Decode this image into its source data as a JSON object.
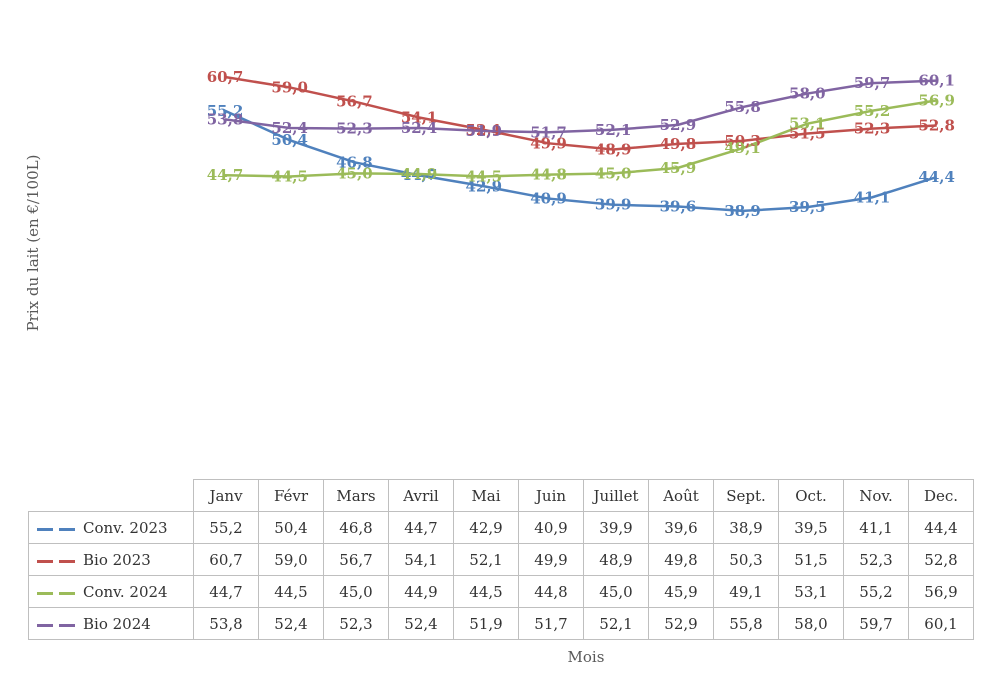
{
  "chart_data": {
    "type": "line",
    "title": "",
    "xlabel": "Mois",
    "ylabel": "Prix du lait (en €/100L)",
    "categories": [
      "Janv",
      "Févr",
      "Mars",
      "Avril",
      "Mai",
      "Juin",
      "Juillet",
      "Août",
      "Sept.",
      "Oct.",
      "Nov.",
      "Dec."
    ],
    "ylim": [
      0,
      62
    ],
    "grid": false,
    "legend": "data-table",
    "series": [
      {
        "name": "Conv. 2023",
        "color": "#4f81bd",
        "values": [
          55.2,
          50.4,
          46.8,
          44.7,
          42.9,
          40.9,
          39.9,
          39.6,
          38.9,
          39.5,
          41.1,
          44.4
        ],
        "labels": [
          "55,2",
          "50,4",
          "46,8",
          "44,7",
          "42,9",
          "40,9",
          "39,9",
          "39,6",
          "38,9",
          "39,5",
          "41,1",
          "44,4"
        ]
      },
      {
        "name": "Bio 2023",
        "color": "#c0504d",
        "values": [
          60.7,
          59.0,
          56.7,
          54.1,
          52.1,
          49.9,
          48.9,
          49.8,
          50.3,
          51.5,
          52.3,
          52.8
        ],
        "labels": [
          "60,7",
          "59,0",
          "56,7",
          "54,1",
          "52,1",
          "49,9",
          "48,9",
          "49,8",
          "50,3",
          "51,5",
          "52,3",
          "52,8"
        ]
      },
      {
        "name": "Conv. 2024",
        "color": "#9bbb59",
        "values": [
          44.7,
          44.5,
          45.0,
          44.9,
          44.5,
          44.8,
          45.0,
          45.9,
          49.1,
          53.1,
          55.2,
          56.9
        ],
        "labels": [
          "44,7",
          "44,5",
          "45,0",
          "44,9",
          "44,5",
          "44,8",
          "45,0",
          "45,9",
          "49,1",
          "53,1",
          "55,2",
          "56,9"
        ]
      },
      {
        "name": "Bio 2024",
        "color": "#8064a2",
        "values": [
          53.8,
          52.4,
          52.3,
          52.4,
          51.9,
          51.7,
          52.1,
          52.9,
          55.8,
          58.0,
          59.7,
          60.1
        ],
        "labels": [
          "53,8",
          "52,4",
          "52,3",
          "52,4",
          "51,9",
          "51,7",
          "52,1",
          "52,9",
          "55,8",
          "58,0",
          "59,7",
          "60,1"
        ]
      }
    ]
  }
}
